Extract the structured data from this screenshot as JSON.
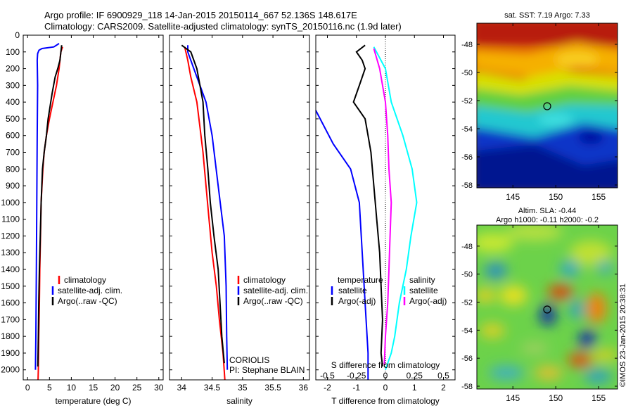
{
  "header": {
    "line1": "Argo profile: IF 6900929_118 14-Jan-2015 20150114_667 52.136S 148.617E",
    "line2": "Climatology: CARS2009. Satellite-adjusted climatology: synTS_20150116.nc (1.9d later)"
  },
  "colors": {
    "climatology": "#ff0000",
    "satellite": "#0000ff",
    "argo": "#000000",
    "argo_salinity": "#ff00ff",
    "satellite_salinity": "#00ffff"
  },
  "depth_ticks": [
    "0",
    "100",
    "200",
    "300",
    "400",
    "500",
    "600",
    "700",
    "800",
    "900",
    "1000",
    "1100",
    "1200",
    "1300",
    "1400",
    "1500",
    "1600",
    "1700",
    "1800",
    "1900",
    "2000"
  ],
  "panels": {
    "temperature": {
      "xlabel": "temperature (deg C)",
      "xticks": [
        "0",
        "5",
        "10",
        "15",
        "20",
        "25",
        "30"
      ],
      "legend": [
        "climatology",
        "satellite-adj. clim.",
        "Argo(..raw -QC)"
      ]
    },
    "salinity": {
      "xlabel": "salinity",
      "xticks": [
        "34",
        "34.5",
        "35",
        "35.5",
        "36"
      ],
      "legend": [
        "climatology",
        "satellite-adj. clim.",
        "Argo(..raw -QC)"
      ],
      "annotation1": "CORIOLIS",
      "annotation2": "PI: Stephane BLAIN"
    },
    "difference": {
      "xlabel": "T difference from climatology",
      "top_label": "S difference from climatology",
      "xticks": [
        "-2",
        "-1",
        "0",
        "1",
        "2"
      ],
      "sticks": [
        "-0.5",
        "-0.25",
        "0",
        "0.25",
        "0.5"
      ],
      "legend_t_title": "temperature",
      "legend_s_title": "salinity",
      "legend_t": [
        "satellite",
        "Argo(-adj)"
      ],
      "legend_s": [
        "satellite",
        "Argo(-adj)"
      ]
    }
  },
  "maps": {
    "sst": {
      "title": "sat. SST: 7.19 Argo: 7.33"
    },
    "sla": {
      "title1": "Altim. SLA: -0.44",
      "title2": "Argo h1000: -0.11 h2000: -0.2"
    },
    "yticks": [
      "-48",
      "-50",
      "-52",
      "-54",
      "-56",
      "-58"
    ],
    "xticks": [
      "145",
      "150",
      "155"
    ]
  },
  "stamp": "©IMOS 23-Jan-2015 20:38:31",
  "chart_data": [
    {
      "type": "line",
      "xlabel": "temperature (deg C)",
      "ylabel": "",
      "xlim": [
        -1,
        31
      ],
      "ylim": [
        2060,
        0
      ],
      "series": [
        {
          "name": "climatology",
          "color": "#ff0000",
          "points": [
            [
              8,
              70
            ],
            [
              7.6,
              100
            ],
            [
              7.2,
              200
            ],
            [
              6.6,
              300
            ],
            [
              5.8,
              400
            ],
            [
              5.0,
              500
            ],
            [
              4.3,
              600
            ],
            [
              3.8,
              700
            ],
            [
              3.5,
              800
            ],
            [
              3.3,
              900
            ],
            [
              3.1,
              1000
            ],
            [
              2.95,
              1200
            ],
            [
              2.8,
              1400
            ],
            [
              2.7,
              1600
            ],
            [
              2.55,
              1800
            ],
            [
              2.45,
              2000
            ],
            [
              2.4,
              2060
            ]
          ]
        },
        {
          "name": "satellite-adj. clim.",
          "color": "#0000ff",
          "points": [
            [
              7.2,
              50
            ],
            [
              6.0,
              70
            ],
            [
              3.3,
              80
            ],
            [
              2.6,
              90
            ],
            [
              2.3,
              110
            ],
            [
              2.2,
              150
            ],
            [
              2.3,
              300
            ],
            [
              2.2,
              600
            ],
            [
              2.1,
              1000
            ],
            [
              2.0,
              1400
            ],
            [
              1.9,
              1800
            ],
            [
              1.8,
              2000
            ]
          ]
        },
        {
          "name": "Argo(..raw -QC)",
          "color": "#000000",
          "points": [
            [
              7.8,
              60
            ],
            [
              7.4,
              150
            ],
            [
              6.9,
              200
            ],
            [
              6.3,
              250
            ],
            [
              5.6,
              350
            ],
            [
              5.0,
              450
            ],
            [
              4.7,
              500
            ],
            [
              4.3,
              600
            ],
            [
              3.8,
              700
            ],
            [
              3.4,
              800
            ],
            [
              3.1,
              1000
            ],
            [
              2.9,
              1200
            ],
            [
              2.7,
              1400
            ],
            [
              2.55,
              1600
            ],
            [
              2.45,
              1800
            ],
            [
              2.35,
              1980
            ]
          ]
        }
      ]
    },
    {
      "type": "line",
      "xlabel": "salinity",
      "ylabel": "",
      "xlim": [
        33.8,
        36.1
      ],
      "ylim": [
        2060,
        0
      ],
      "series": [
        {
          "name": "climatology",
          "color": "#ff0000",
          "points": [
            [
              34.05,
              70
            ],
            [
              34.1,
              150
            ],
            [
              34.15,
              250
            ],
            [
              34.25,
              400
            ],
            [
              34.3,
              550
            ],
            [
              34.35,
              700
            ],
            [
              34.4,
              900
            ],
            [
              34.45,
              1100
            ],
            [
              34.5,
              1300
            ],
            [
              34.57,
              1500
            ],
            [
              34.62,
              1700
            ],
            [
              34.68,
              1900
            ],
            [
              34.71,
              2060
            ]
          ]
        },
        {
          "name": "satellite-adj. clim.",
          "color": "#0000ff",
          "points": [
            [
              34.1,
              60
            ],
            [
              34.1,
              100
            ],
            [
              34.2,
              200
            ],
            [
              34.3,
              300
            ],
            [
              34.4,
              400
            ],
            [
              34.5,
              600
            ],
            [
              34.6,
              900
            ],
            [
              34.7,
              1200
            ],
            [
              34.73,
              1500
            ],
            [
              34.74,
              1800
            ],
            [
              34.75,
              2000
            ]
          ]
        },
        {
          "name": "Argo(..raw -QC)",
          "color": "#000000",
          "points": [
            [
              34.0,
              60
            ],
            [
              34.15,
              100
            ],
            [
              34.25,
              200
            ],
            [
              34.3,
              300
            ],
            [
              34.35,
              400
            ],
            [
              34.38,
              600
            ],
            [
              34.43,
              800
            ],
            [
              34.47,
              1000
            ],
            [
              34.53,
              1200
            ],
            [
              34.6,
              1400
            ],
            [
              34.63,
              1600
            ],
            [
              34.66,
              1800
            ],
            [
              34.7,
              1960
            ]
          ]
        }
      ]
    },
    {
      "type": "line",
      "xlabel": "T difference from climatology",
      "ylabel": "",
      "xlim": [
        -2.4,
        2.4
      ],
      "ylim": [
        2060,
        0
      ],
      "x2label": "S difference from climatology",
      "x2lim": [
        -0.6,
        0.6
      ],
      "series": [
        {
          "name": "temperature satellite",
          "color": "#0000ff",
          "axis": "T",
          "points": [
            [
              -2.4,
              450
            ],
            [
              -1.8,
              650
            ],
            [
              -1.2,
              800
            ],
            [
              -0.9,
              1000
            ],
            [
              -0.8,
              1300
            ],
            [
              -0.7,
              1600
            ],
            [
              -0.6,
              1900
            ],
            [
              -0.6,
              2060
            ]
          ]
        },
        {
          "name": "temperature Argo(-adj)",
          "color": "#000000",
          "axis": "T",
          "points": [
            [
              -0.7,
              60
            ],
            [
              -1.0,
              100
            ],
            [
              -0.8,
              150
            ],
            [
              -0.7,
              200
            ],
            [
              -0.9,
              300
            ],
            [
              -1.1,
              400
            ],
            [
              -0.7,
              500
            ],
            [
              -0.6,
              600
            ],
            [
              -0.5,
              700
            ],
            [
              -0.4,
              900
            ],
            [
              -0.3,
              1100
            ],
            [
              -0.2,
              1300
            ],
            [
              -0.15,
              1500
            ],
            [
              -0.1,
              1700
            ],
            [
              -0.15,
              1900
            ],
            [
              -0.1,
              1980
            ]
          ]
        },
        {
          "name": "salinity satellite",
          "color": "#00ffff",
          "axis": "S",
          "points": [
            [
              -0.1,
              70
            ],
            [
              0.0,
              200
            ],
            [
              0.05,
              400
            ],
            [
              0.15,
              600
            ],
            [
              0.23,
              800
            ],
            [
              0.27,
              1000
            ],
            [
              0.22,
              1200
            ],
            [
              0.18,
              1400
            ],
            [
              0.12,
              1600
            ],
            [
              0.08,
              1800
            ],
            [
              0.05,
              1900
            ],
            [
              0.0,
              2000
            ]
          ]
        },
        {
          "name": "salinity Argo(-adj)",
          "color": "#ff00ff",
          "axis": "S",
          "points": [
            [
              -0.1,
              80
            ],
            [
              -0.05,
              200
            ],
            [
              0.0,
              400
            ],
            [
              0.02,
              600
            ],
            [
              0.03,
              800
            ],
            [
              0.05,
              1000
            ],
            [
              0.04,
              1200
            ],
            [
              0.03,
              1400
            ],
            [
              0.02,
              1600
            ],
            [
              0.0,
              1800
            ],
            [
              -0.01,
              1970
            ]
          ]
        }
      ]
    }
  ]
}
